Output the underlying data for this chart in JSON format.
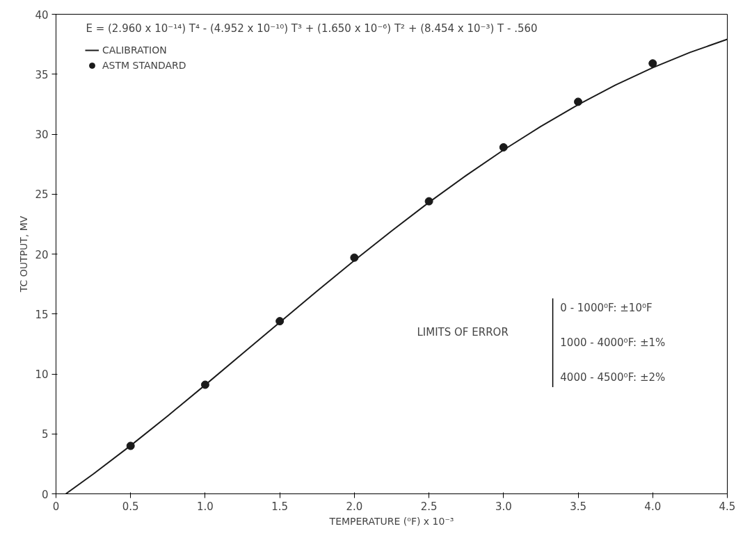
{
  "chart_data": {
    "type": "line",
    "xlabel": "TEMPERATURE (⁰F) x 10⁻³",
    "ylabel": "TC OUTPUT, MV",
    "annotations": [
      "E = (2.960 x 10⁻¹⁴) T⁴ - (4.952 x 10⁻¹⁰) T³ + (1.650 x 10⁻⁶) T² + (8.454 x 10⁻³) T - .560",
      "LIMITS OF ERROR",
      "0 - 1000⁰F:  ±10⁰F",
      "1000 - 4000⁰F:  ±1%",
      "4000 - 4500⁰F:  ±2%"
    ],
    "xlim": [
      0,
      4.5
    ],
    "ylim": [
      0,
      40
    ],
    "xticks": [
      0,
      {
        "value": 0.5,
        "label": "0.5"
      },
      {
        "value": 1,
        "label": "1.0"
      },
      {
        "value": 1.5,
        "label": "1.5"
      },
      {
        "value": 2,
        "label": "2.0"
      },
      {
        "value": 2.5,
        "label": "2.5"
      },
      {
        "value": 3,
        "label": "3.0"
      },
      {
        "value": 3.5,
        "label": "3.5"
      },
      {
        "value": 4,
        "label": "4.0"
      },
      {
        "value": 4.5,
        "label": "4.5"
      }
    ],
    "yticks": [
      0,
      5,
      10,
      15,
      20,
      25,
      30,
      35,
      40
    ],
    "grid": false,
    "legend": "top left",
    "series": [
      {
        "name": "CALIBRATION",
        "color": "#1a1a1a",
        "line_style": "solid",
        "marker": "none",
        "x": [
          0.066,
          0.25,
          0.5,
          0.75,
          1.0,
          1.25,
          1.5,
          1.75,
          2.0,
          2.25,
          2.5,
          2.75,
          3.0,
          3.25,
          3.5,
          3.75,
          4.0,
          4.25,
          4.5
        ],
        "values": [
          0,
          1.65,
          4.02,
          6.51,
          9.08,
          11.69,
          14.31,
          16.91,
          19.46,
          21.93,
          24.31,
          26.56,
          28.68,
          30.65,
          32.45,
          34.09,
          35.54,
          36.82,
          37.91
        ]
      },
      {
        "name": "ASTM STANDARD",
        "type": "scatter",
        "color": "#1a1a1a",
        "marker": "circle",
        "x": [
          0.5,
          1.0,
          1.5,
          2.0,
          2.5,
          3.0,
          3.5,
          4.0
        ],
        "values": [
          4.0,
          9.1,
          14.4,
          19.7,
          24.4,
          28.9,
          32.7,
          35.9
        ]
      }
    ]
  }
}
